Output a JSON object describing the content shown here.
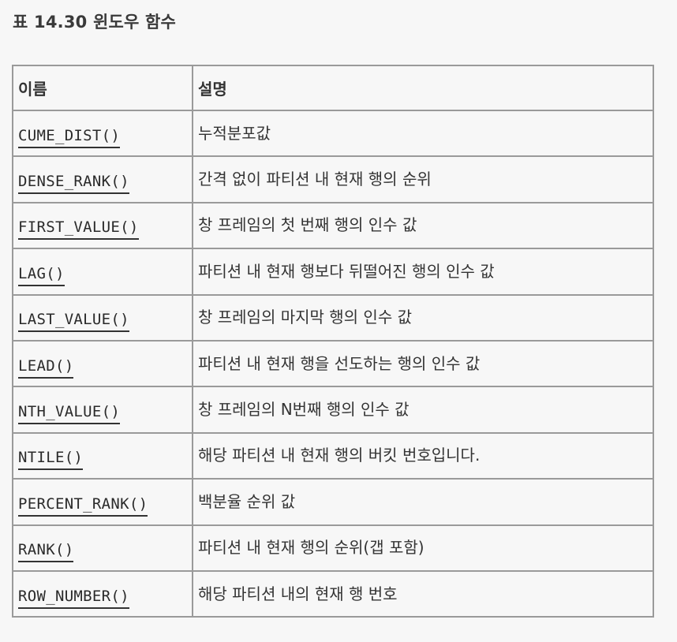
{
  "caption": "표 14.30 윈도우 함수",
  "table": {
    "headers": [
      "이름",
      "설명"
    ],
    "rows": [
      {
        "name": "CUME_DIST()",
        "desc": "누적분포값"
      },
      {
        "name": "DENSE_RANK()",
        "desc": "간격 없이 파티션 내 현재 행의 순위"
      },
      {
        "name": "FIRST_VALUE()",
        "desc": "창 프레임의 첫 번째 행의 인수 값"
      },
      {
        "name": "LAG()",
        "desc": "파티션 내 현재 행보다 뒤떨어진 행의 인수 값"
      },
      {
        "name": "LAST_VALUE()",
        "desc": "창 프레임의 마지막 행의 인수 값"
      },
      {
        "name": "LEAD()",
        "desc": "파티션 내 현재 행을 선도하는 행의 인수 값"
      },
      {
        "name": "NTH_VALUE()",
        "desc": "창 프레임의 N번째 행의 인수 값"
      },
      {
        "name": "NTILE()",
        "desc": "해당 파티션 내 현재 행의 버킷 번호입니다."
      },
      {
        "name": "PERCENT_RANK()",
        "desc": "백분율 순위 값"
      },
      {
        "name": "RANK()",
        "desc": "파티션 내 현재 행의 순위(갭 포함)"
      },
      {
        "name": "ROW_NUMBER()",
        "desc": "해당 파티션 내의 현재 행 번호"
      }
    ]
  }
}
